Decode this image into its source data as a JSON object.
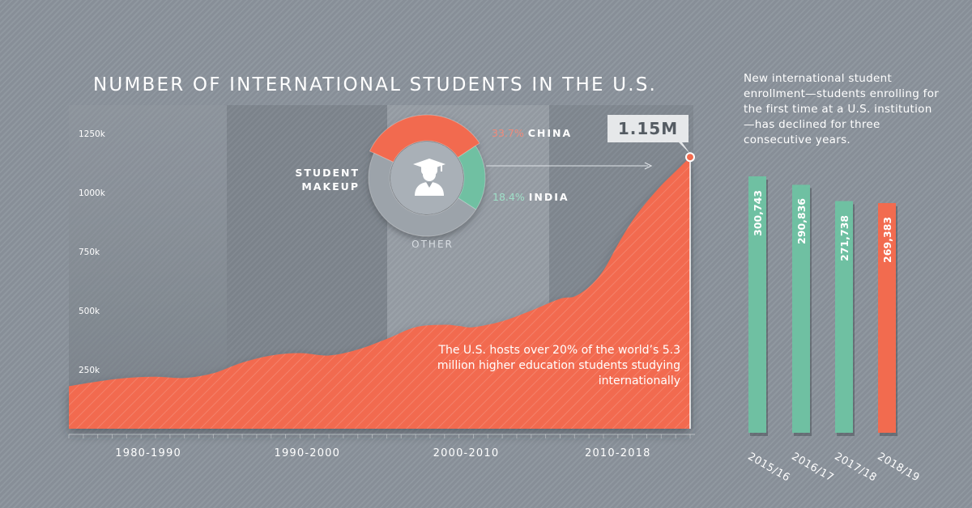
{
  "chart_data": [
    {
      "type": "area",
      "title": "NUMBER OF INTERNATIONAL STUDENTS IN THE U.S.",
      "y_ticks": [
        "250k",
        "500k",
        "750k",
        "1000k",
        "1250k"
      ],
      "ylim": [
        0,
        1250000
      ],
      "xlim": [
        1975,
        2018
      ],
      "x_ranges": [
        {
          "label": "1980-1990",
          "from": 1975,
          "to": 1986
        },
        {
          "label": "1990-2000",
          "from": 1986,
          "to": 1997
        },
        {
          "label": "2000-2010",
          "from": 1997,
          "to": 2008
        },
        {
          "label": "2010-2018",
          "from": 2008,
          "to": 2018
        }
      ],
      "x": [
        1975,
        1977,
        1979,
        1981,
        1983,
        1985,
        1987,
        1989,
        1991,
        1993,
        1995,
        1997,
        1999,
        2001,
        2002,
        2003,
        2005,
        2007,
        2009,
        2010,
        2011,
        2012,
        2013,
        2014,
        2015,
        2016,
        2017,
        2018
      ],
      "values": [
        180000,
        200000,
        215000,
        220000,
        215000,
        235000,
        280000,
        310000,
        320000,
        310000,
        335000,
        380000,
        430000,
        440000,
        435000,
        430000,
        455000,
        500000,
        550000,
        560000,
        600000,
        670000,
        780000,
        880000,
        960000,
        1030000,
        1090000,
        1150000
      ],
      "callout": "1.15M",
      "note": "The U.S. hosts over 20% of the world’s 5.3 million higher education students studying internationally",
      "colors": {
        "area": "#f26b4f",
        "highlight": "#ffffff"
      }
    },
    {
      "type": "pie",
      "center_label": "STUDENT MAKEUP",
      "slices": [
        {
          "name": "CHINA",
          "pct_label": "33.7%",
          "value": 33.7,
          "color": "#f26b4f"
        },
        {
          "name": "INDIA",
          "pct_label": "18.4%",
          "value": 18.4,
          "color": "#6fc0a2"
        },
        {
          "name": "OTHER",
          "pct_label": "",
          "value": 47.9,
          "color": "#9ca3aa"
        }
      ]
    },
    {
      "type": "bar",
      "note": "New international student enrollment—students enrolling for the first time at a U.S. institution—has declined for three consecutive years.",
      "categories": [
        "2015/16",
        "2016/17",
        "2017/18",
        "2018/19"
      ],
      "values": [
        300743,
        290836,
        271738,
        269383
      ],
      "value_labels": [
        "300,743",
        "290,836",
        "271,738",
        "269,383"
      ],
      "colors": [
        "#6fc0a2",
        "#6fc0a2",
        "#6fc0a2",
        "#f26b4f"
      ]
    }
  ]
}
